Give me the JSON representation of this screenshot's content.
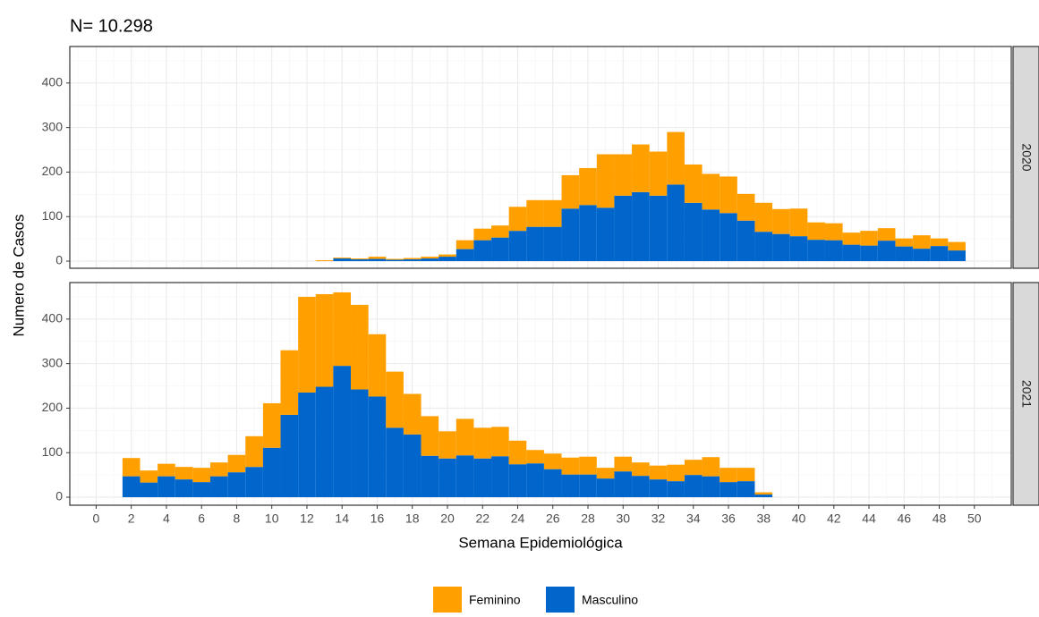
{
  "chart_data": [
    {
      "type": "bar",
      "title": "N= 10.298",
      "y_label": "Numero de Casos",
      "facet": "2020",
      "x": [
        13,
        14,
        15,
        16,
        17,
        18,
        19,
        20,
        21,
        22,
        23,
        24,
        25,
        26,
        27,
        28,
        29,
        30,
        31,
        32,
        33,
        34,
        35,
        36,
        37,
        38,
        39,
        40,
        41,
        42,
        43,
        44,
        45,
        46,
        47,
        48,
        49
      ],
      "series": [
        {
          "name": "Feminino",
          "color": "#FF9F00",
          "values": [
            2,
            2,
            2,
            5,
            2,
            3,
            4,
            5,
            20,
            26,
            27,
            54,
            60,
            60,
            75,
            83,
            120,
            93,
            107,
            99,
            118,
            86,
            80,
            82,
            60,
            65,
            56,
            62,
            39,
            38,
            27,
            33,
            28,
            18,
            30,
            17,
            19
          ]
        },
        {
          "name": "Masculino",
          "color": "#0066CC",
          "values": [
            0,
            6,
            4,
            5,
            3,
            4,
            6,
            10,
            27,
            47,
            53,
            68,
            77,
            77,
            118,
            126,
            120,
            147,
            155,
            147,
            172,
            131,
            116,
            108,
            91,
            66,
            61,
            56,
            48,
            47,
            37,
            35,
            46,
            33,
            28,
            34,
            24
          ]
        }
      ],
      "xlim": [
        -1.5,
        52.1
      ],
      "ylim": [
        -16,
        482
      ],
      "yticks": [
        0,
        100,
        200,
        300,
        400
      ],
      "grid": true
    },
    {
      "type": "bar",
      "x_label": "Semana Epidemiológica",
      "facet": "2021",
      "x": [
        2,
        3,
        4,
        5,
        6,
        7,
        8,
        9,
        10,
        11,
        12,
        13,
        14,
        15,
        16,
        17,
        18,
        19,
        20,
        21,
        22,
        23,
        24,
        25,
        26,
        27,
        28,
        29,
        30,
        31,
        32,
        33,
        34,
        35,
        36,
        37,
        38
      ],
      "series": [
        {
          "name": "Feminino",
          "color": "#FF9F00",
          "values": [
            41,
            27,
            28,
            28,
            32,
            31,
            39,
            69,
            100,
            145,
            215,
            208,
            165,
            190,
            140,
            126,
            91,
            89,
            61,
            82,
            69,
            66,
            53,
            30,
            35,
            38,
            40,
            24,
            33,
            30,
            31,
            37,
            34,
            43,
            32,
            30,
            5
          ]
        },
        {
          "name": "Masculino",
          "color": "#0066CC",
          "values": [
            47,
            33,
            47,
            40,
            34,
            47,
            56,
            68,
            111,
            185,
            235,
            248,
            295,
            242,
            226,
            156,
            141,
            93,
            87,
            94,
            87,
            92,
            74,
            76,
            63,
            51,
            51,
            42,
            58,
            48,
            40,
            36,
            50,
            47,
            34,
            36,
            6
          ]
        }
      ],
      "xlim": [
        -1.5,
        52.1
      ],
      "ylim": [
        -18,
        482
      ],
      "yticks": [
        0,
        100,
        200,
        300,
        400
      ],
      "xticks": [
        0,
        2,
        4,
        6,
        8,
        10,
        12,
        14,
        16,
        18,
        20,
        22,
        24,
        26,
        28,
        30,
        32,
        34,
        36,
        38,
        40,
        42,
        44,
        46,
        48,
        50
      ],
      "grid": true
    }
  ]
}
